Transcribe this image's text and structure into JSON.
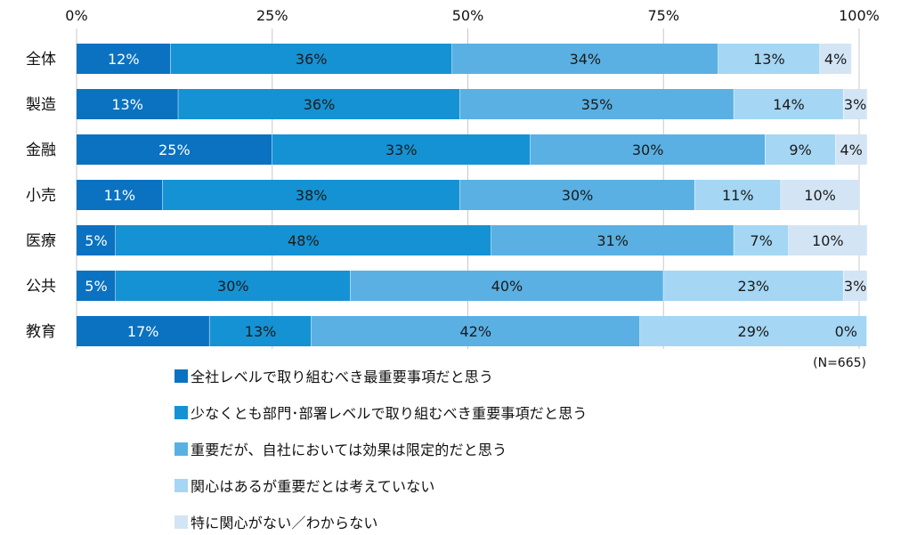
{
  "chart_data": {
    "type": "bar",
    "orientation": "horizontal",
    "stacked": true,
    "normalized": true,
    "x_ticks": [
      "0%",
      "25%",
      "50%",
      "75%",
      "100%"
    ],
    "xlim": [
      0,
      100
    ],
    "categories": [
      "全体",
      "製造",
      "金融",
      "小売",
      "医療",
      "公共",
      "教育"
    ],
    "series": [
      {
        "name": "全社レベルで取り組むべき最重要事項だと思う",
        "color": "#0a72c1",
        "values": [
          12,
          13,
          25,
          11,
          5,
          5,
          17
        ],
        "labels": [
          "12%",
          "13%",
          "25%",
          "11%",
          "5%",
          "5%",
          "17%"
        ]
      },
      {
        "name": "少なくとも部門･部署レベルで取り組むべき重要事項だと思う",
        "color": "#1592d3",
        "values": [
          36,
          36,
          33,
          38,
          48,
          30,
          13
        ],
        "labels": [
          "36%",
          "36%",
          "33%",
          "38%",
          "48%",
          "30%",
          "13%"
        ]
      },
      {
        "name": "重要だが、自社においては効果は限定的だと思う",
        "color": "#5ab0e2",
        "values": [
          34,
          35,
          30,
          30,
          31,
          40,
          42
        ],
        "labels": [
          "34%",
          "35%",
          "30%",
          "30%",
          "31%",
          "40%",
          "42%"
        ]
      },
      {
        "name": "関心はあるが重要だとは考えていない",
        "color": "#a5d6f3",
        "values": [
          13,
          14,
          9,
          11,
          7,
          23,
          29
        ],
        "labels": [
          "13%",
          "14%",
          "9%",
          "11%",
          "7%",
          "23%",
          "29%"
        ]
      },
      {
        "name": "特に関心がない／わからない",
        "color": "#d3e5f5",
        "values": [
          4,
          3,
          4,
          10,
          10,
          3,
          0
        ],
        "labels": [
          "4%",
          "3%",
          "4%",
          "10%",
          "10%",
          "3%",
          "0%"
        ]
      }
    ],
    "note": "(N=665)",
    "grid": true,
    "legend_position": "bottom"
  }
}
